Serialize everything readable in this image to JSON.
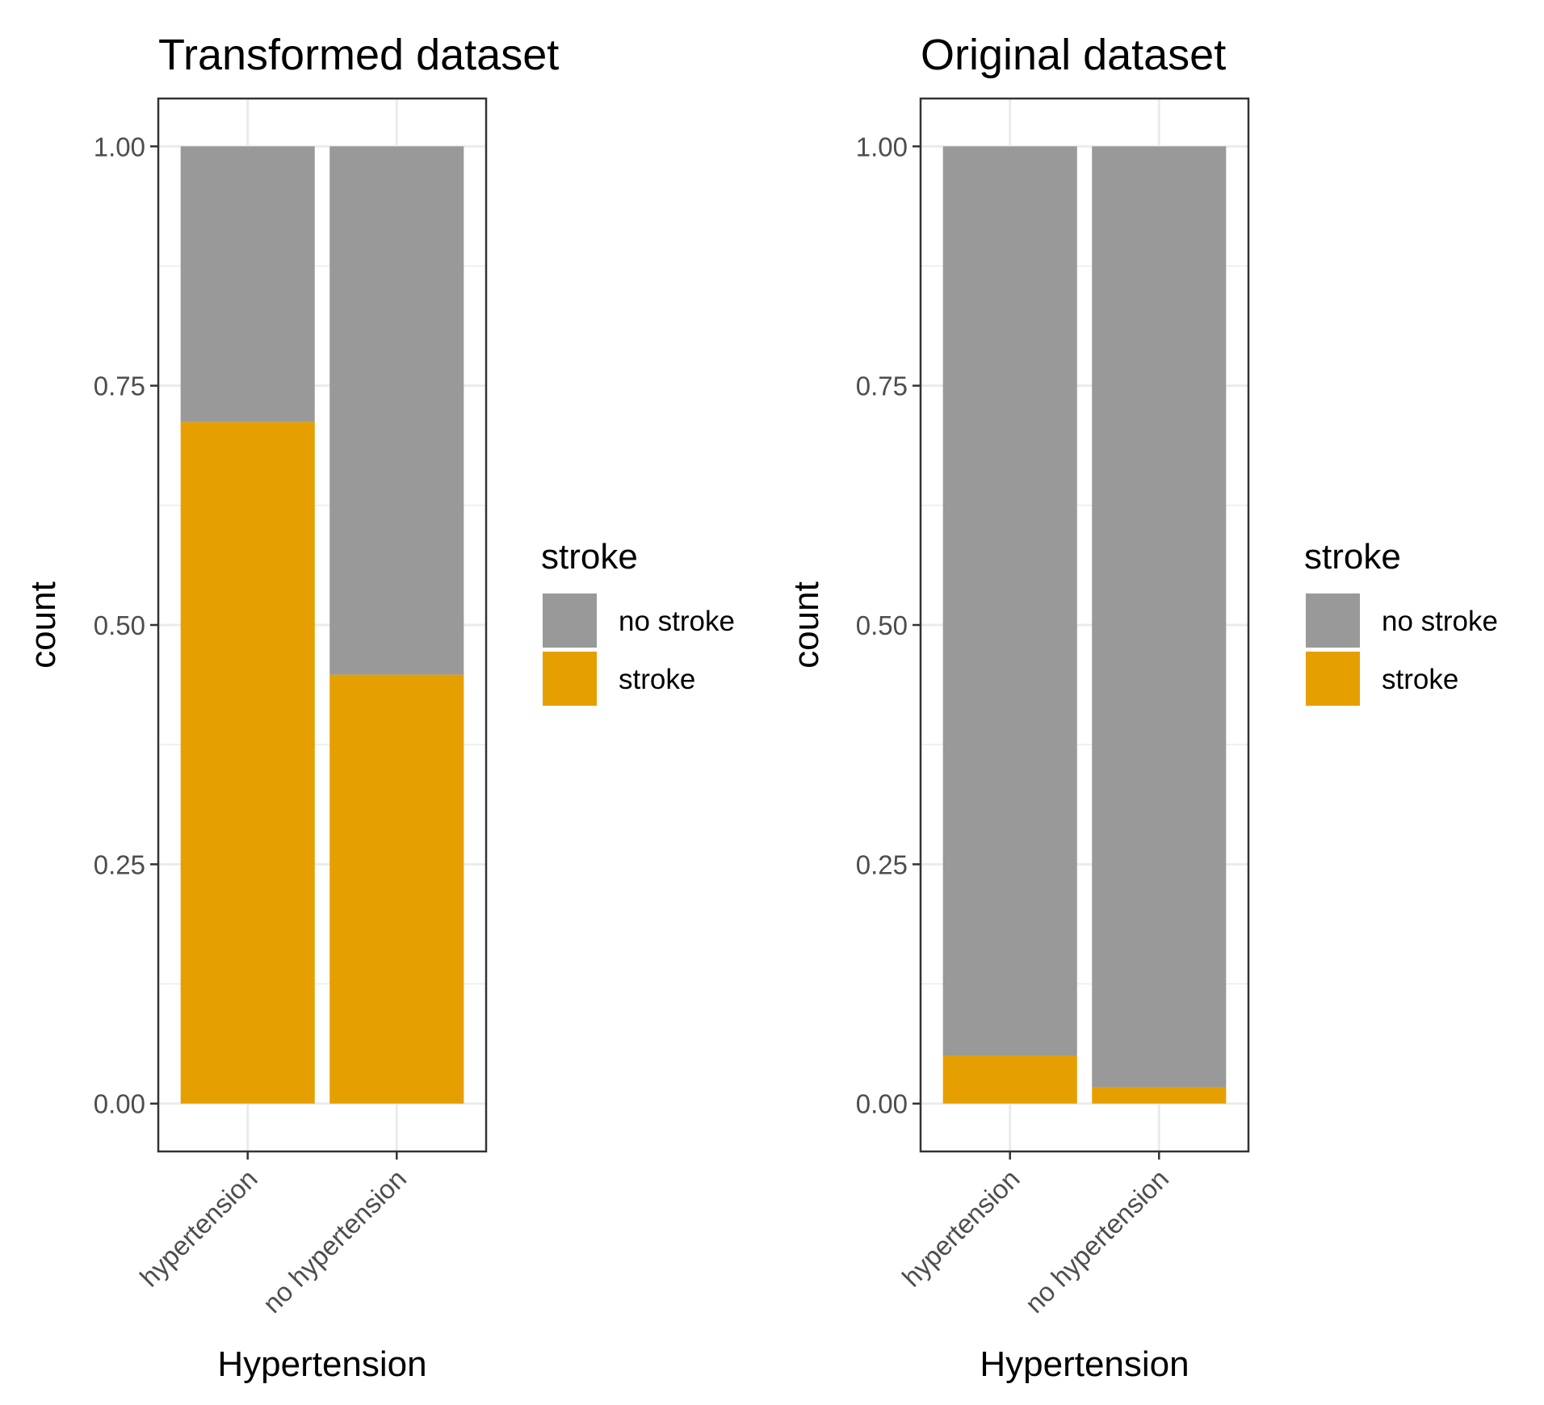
{
  "colors": {
    "no stroke": "#999999",
    "stroke": "#E69F00"
  },
  "chart_data": [
    {
      "type": "bar",
      "stacked": "fill",
      "title": "Transformed dataset",
      "xlabel": "Hypertension",
      "ylabel": "count",
      "categories": [
        "hypertension",
        "no hypertension"
      ],
      "yticks": [
        "0.00",
        "0.25",
        "0.50",
        "0.75",
        "1.00"
      ],
      "ylim": [
        -0.05,
        1.05
      ],
      "grid": true,
      "legend": {
        "title": "stroke",
        "position": "right",
        "entries": [
          "no stroke",
          "stroke"
        ]
      },
      "series": [
        {
          "name": "stroke",
          "values": [
            0.712,
            0.448
          ]
        },
        {
          "name": "no stroke",
          "values": [
            0.288,
            0.552
          ]
        }
      ]
    },
    {
      "type": "bar",
      "stacked": "fill",
      "title": "Original dataset",
      "xlabel": "Hypertension",
      "ylabel": "count",
      "categories": [
        "hypertension",
        "no hypertension"
      ],
      "yticks": [
        "0.00",
        "0.25",
        "0.50",
        "0.75",
        "1.00"
      ],
      "ylim": [
        -0.05,
        1.05
      ],
      "grid": true,
      "legend": {
        "title": "stroke",
        "position": "right",
        "entries": [
          "no stroke",
          "stroke"
        ]
      },
      "series": [
        {
          "name": "stroke",
          "values": [
            0.05,
            0.017
          ]
        },
        {
          "name": "no stroke",
          "values": [
            0.95,
            0.983
          ]
        }
      ]
    }
  ]
}
